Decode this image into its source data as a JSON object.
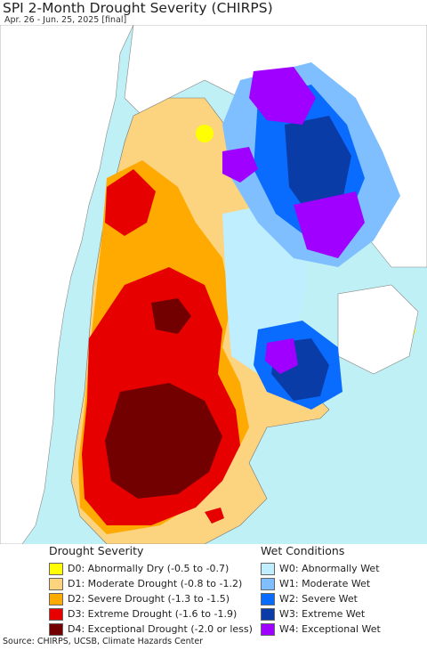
{
  "header": {
    "title": "SPI 2-Month Drought Severity (CHIRPS)",
    "subtitle": "Apr. 26 - Jun. 25, 2025 [final]"
  },
  "colors": {
    "ocean": "#bff0f5",
    "land_neighbor": "#ffffff",
    "d0": "#ffff00",
    "d1": "#fcd37f",
    "d2": "#ffaa00",
    "d3": "#e60000",
    "d4": "#730000",
    "w0": "#bfeeff",
    "w1": "#7fbfff",
    "w2": "#0a6cff",
    "w3": "#0a3ca8",
    "w4": "#a000ff"
  },
  "legend": {
    "drought_heading": "Drought Severity",
    "drought_items": [
      {
        "label": "D0: Abnormally Dry (-0.5 to -0.7)",
        "color": "#ffff00"
      },
      {
        "label": "D1: Moderate Drought (-0.8 to -1.2)",
        "color": "#fcd37f"
      },
      {
        "label": "D2: Severe Drought (-1.3 to -1.5)",
        "color": "#ffaa00"
      },
      {
        "label": "D3: Extreme Drought (-1.6 to -1.9)",
        "color": "#e60000"
      },
      {
        "label": "D4: Exceptional Drought (-2.0 or less)",
        "color": "#730000"
      }
    ],
    "wet_heading": "Wet Conditions",
    "wet_items": [
      {
        "label": "W0: Abnormally Wet",
        "color": "#bfeeff"
      },
      {
        "label": "W1: Moderate Wet",
        "color": "#7fbfff"
      },
      {
        "label": "W2: Severe Wet",
        "color": "#0a6cff"
      },
      {
        "label": "W3: Extreme Wet",
        "color": "#0a3ca8"
      },
      {
        "label": "W4: Exceptional Wet",
        "color": "#a000ff"
      }
    ]
  },
  "footer": {
    "source": "Source: CHIRPS, UCSB, Climate Hazards Center"
  }
}
